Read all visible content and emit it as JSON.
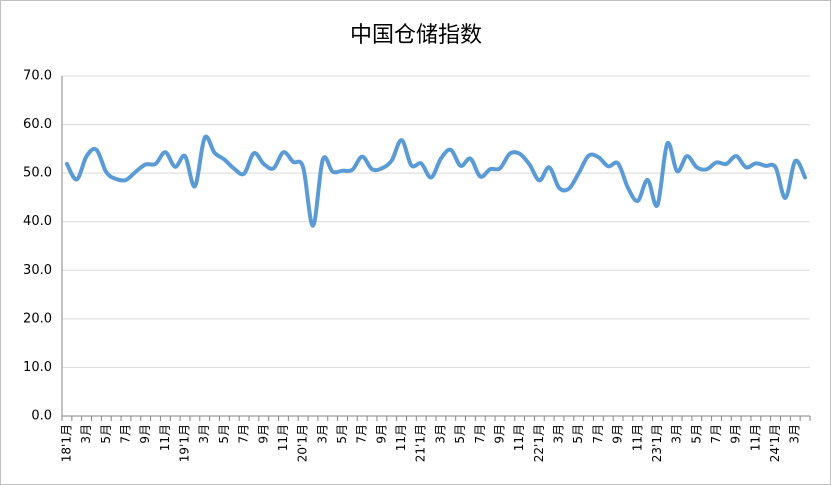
{
  "chart_data": {
    "type": "line",
    "title": "中国仓储指数",
    "categories": [
      "18'1月",
      null,
      "3月",
      null,
      "5月",
      null,
      "7月",
      null,
      "9月",
      null,
      "11月",
      null,
      "19'1月",
      null,
      "3月",
      null,
      "5月",
      null,
      "7月",
      null,
      "9月",
      null,
      "11月",
      null,
      "20'1月",
      null,
      "3月",
      null,
      "5月",
      null,
      "7月",
      null,
      "9月",
      null,
      "11月",
      null,
      "21'1月",
      null,
      "3月",
      null,
      "5月",
      null,
      "7月",
      null,
      "9月",
      null,
      "11月",
      null,
      "22'1月",
      null,
      "3月",
      null,
      "5月",
      null,
      "7月",
      null,
      "9月",
      null,
      "11月",
      null,
      "23'1月",
      null,
      "3月",
      null,
      "5月",
      null,
      "7月",
      null,
      "9月",
      null,
      "11月",
      null,
      "24'1月",
      null,
      "3月",
      null
    ],
    "values": [
      51.9,
      48.7,
      53.5,
      54.8,
      50.2,
      48.8,
      48.6,
      50.3,
      51.8,
      51.9,
      54.3,
      51.3,
      53.5,
      47.3,
      57.3,
      54.2,
      52.8,
      50.9,
      49.9,
      54.1,
      51.9,
      51.0,
      54.3,
      52.3,
      51.2,
      39.2,
      52.8,
      50.3,
      50.5,
      50.7,
      53.4,
      50.8,
      51.0,
      52.6,
      56.8,
      51.6,
      52.0,
      49.1,
      53.0,
      54.8,
      51.5,
      53.0,
      49.3,
      50.8,
      51.0,
      54.0,
      54.0,
      51.8,
      48.5,
      51.2,
      47.0,
      46.8,
      50.0,
      53.6,
      53.3,
      51.4,
      52.0,
      47.0,
      44.3,
      48.6,
      43.4,
      56.1,
      50.4,
      53.5,
      51.2,
      50.8,
      52.2,
      51.9,
      53.5,
      51.2,
      52.0,
      51.5,
      51.2,
      44.9,
      52.5,
      49.1
    ],
    "color": "#5b9bd5",
    "ylim": [
      0,
      70
    ],
    "yticks": [
      {
        "value": 0,
        "label": "0.0"
      },
      {
        "value": 10,
        "label": "10.0"
      },
      {
        "value": 20,
        "label": "20.0"
      },
      {
        "value": 30,
        "label": "30.0"
      },
      {
        "value": 40,
        "label": "40.0"
      },
      {
        "value": 50,
        "label": "50.0"
      },
      {
        "value": 60,
        "label": "60.0"
      },
      {
        "value": 70,
        "label": "70.0"
      }
    ],
    "grid": true
  }
}
